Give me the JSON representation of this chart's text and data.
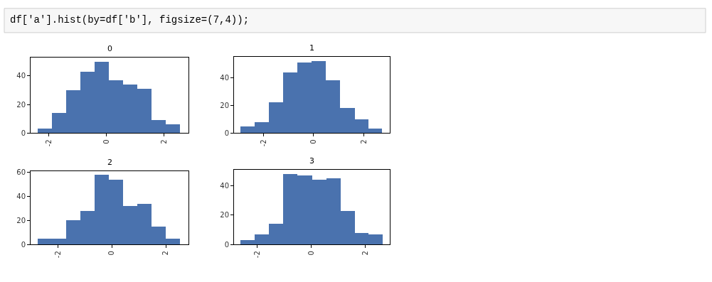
{
  "chart_data": [
    {
      "type": "other",
      "annotations": [
        "df['a'].hist(by=df['b'], figsize=(7,4));"
      ]
    },
    {
      "type": "histogram",
      "title": "0",
      "bins": [
        -2.39,
        -1.9,
        -1.4,
        -0.91,
        -0.41,
        0.08,
        0.58,
        1.07,
        1.57,
        2.06,
        2.56
      ],
      "values": [
        3,
        14,
        30,
        43,
        50,
        37,
        34,
        31,
        9,
        6
      ],
      "color": "#4a72ae",
      "xlim": [
        -2.64,
        2.85
      ],
      "ylim": [
        0,
        52.8
      ],
      "xticks": [
        -2,
        0,
        2
      ],
      "yticks": [
        0,
        20,
        40
      ]
    },
    {
      "type": "histogram",
      "title": "1",
      "bins": [
        -2.91,
        -2.35,
        -1.78,
        -1.21,
        -0.64,
        -0.08,
        0.49,
        1.06,
        1.63,
        2.17,
        2.73
      ],
      "values": [
        5,
        8,
        22,
        44,
        51,
        52,
        38,
        18,
        10,
        3
      ],
      "color": "#4a72ae",
      "xlim": [
        -3.17,
        3.03
      ],
      "ylim": [
        0,
        55.1
      ],
      "xticks": [
        -2,
        0,
        2
      ],
      "yticks": [
        0,
        20,
        40
      ]
    },
    {
      "type": "histogram",
      "title": "2",
      "bins": [
        -2.74,
        -2.22,
        -1.69,
        -1.16,
        -0.63,
        -0.11,
        0.42,
        0.95,
        1.48,
        2.0,
        2.53
      ],
      "values": [
        5,
        5,
        20,
        28,
        58,
        54,
        32,
        34,
        15,
        5
      ],
      "color": "#4a72ae",
      "xlim": [
        -3.01,
        2.84
      ],
      "ylim": [
        0,
        61
      ],
      "xticks": [
        -2,
        0,
        2
      ],
      "yticks": [
        0,
        20,
        40,
        60
      ]
    },
    {
      "type": "histogram",
      "title": "3",
      "bins": [
        -2.63,
        -2.1,
        -1.57,
        -1.04,
        -0.51,
        0.02,
        0.55,
        1.08,
        1.61,
        2.11,
        2.64
      ],
      "values": [
        3,
        7,
        14,
        48,
        47,
        44,
        45,
        23,
        8,
        7
      ],
      "color": "#4a72ae",
      "xlim": [
        -2.87,
        2.91
      ],
      "ylim": [
        0,
        51
      ],
      "xticks": [
        -2,
        0,
        2
      ],
      "yticks": [
        0,
        20,
        40
      ]
    }
  ]
}
